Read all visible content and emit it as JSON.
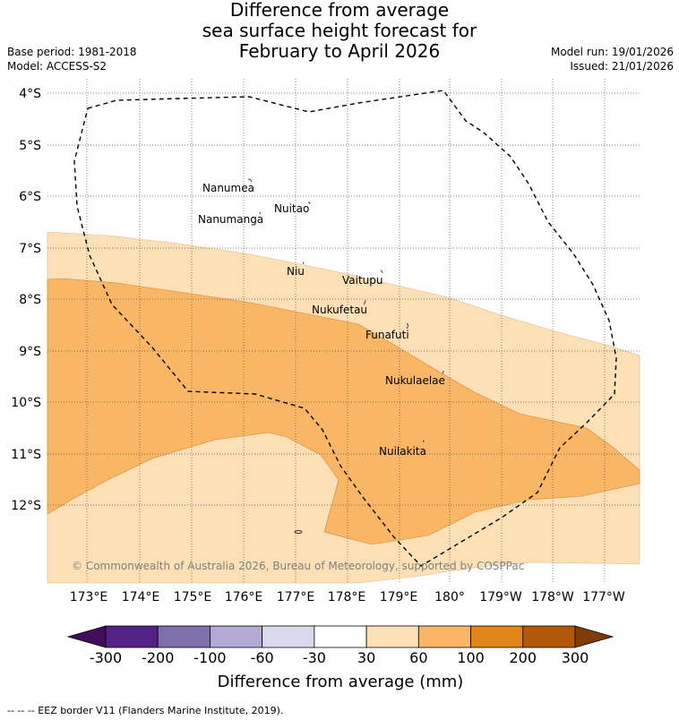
{
  "header": {
    "title_lines": [
      "Difference from average",
      "sea surface height forecast for",
      "February to April 2026"
    ],
    "base_period": "Base period: 1981-2018",
    "model": "Model: ACCESS-S2",
    "model_run": "Model run: 19/01/2026",
    "issued": "Issued: 21/01/2026"
  },
  "map": {
    "lat_labels": [
      "4°S",
      "5°S",
      "6°S",
      "7°S",
      "8°S",
      "9°S",
      "10°S",
      "11°S",
      "12°S"
    ],
    "lon_labels": [
      "173°E",
      "174°E",
      "175°E",
      "176°E",
      "177°E",
      "178°E",
      "179°E",
      "180°",
      "179°W",
      "178°W",
      "177°W"
    ],
    "places": [
      {
        "name": "Nanumea"
      },
      {
        "name": "Nuitao"
      },
      {
        "name": "Nanumanga"
      },
      {
        "name": "Niu"
      },
      {
        "name": "Vaitupu"
      },
      {
        "name": "Nukufetau"
      },
      {
        "name": "Funafuti"
      },
      {
        "name": "Nukulaelae"
      },
      {
        "name": "Nuilakita"
      }
    ],
    "copyright": "© Commonwealth of Australia 2026, Bureau of Meteorology, supported by COSPPac",
    "colors": {
      "band_30_60": "#fde0b6",
      "band_60_100": "#f9b664",
      "eez_border": "#000000"
    }
  },
  "colorbar": {
    "ticks": [
      "-300",
      "-200",
      "-100",
      "-60",
      "-30",
      "30",
      "60",
      "100",
      "200",
      "300"
    ],
    "colors": [
      "#3f0f5c",
      "#542287",
      "#7f70ad",
      "#b2aad2",
      "#d8d9ea",
      "#ffffff",
      "#fde0b6",
      "#f9b664",
      "#e28417",
      "#b35806",
      "#7f3b08"
    ],
    "title": "Difference from average (mm)"
  },
  "footer": {
    "eez_note": "-- -- -- EEZ border V11 (Flanders Marine Institute, 2019)."
  }
}
